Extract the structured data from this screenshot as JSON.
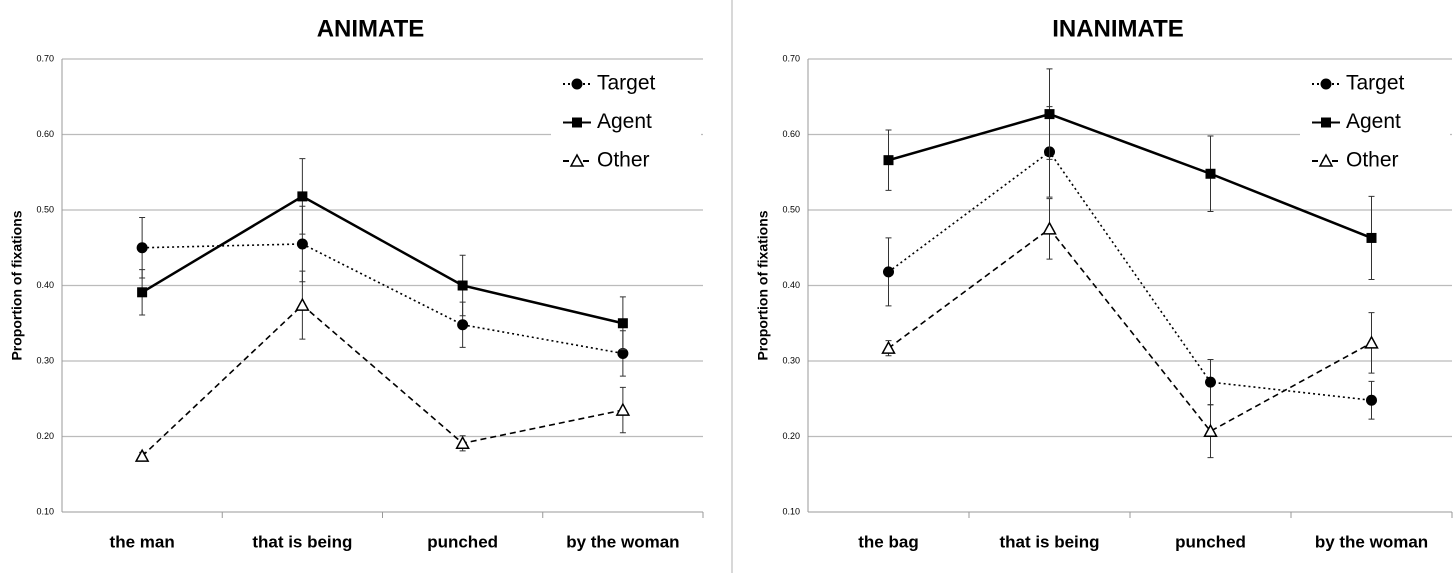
{
  "chart_data": [
    {
      "type": "line",
      "title": "ANIMATE",
      "y_label": "Proportion of fixations",
      "categories": [
        "the man",
        "that is being",
        "punched",
        "by the woman"
      ],
      "ylim": [
        0.1,
        0.7
      ],
      "yticks": [
        {
          "value": 0.1,
          "label": "0.10"
        },
        {
          "value": 0.2,
          "label": "0.20"
        },
        {
          "value": 0.3,
          "label": "0.30"
        },
        {
          "value": 0.4,
          "label": "0.40"
        },
        {
          "value": 0.5,
          "label": "0.50"
        },
        {
          "value": 0.6,
          "label": "0.60"
        },
        {
          "value": 0.7,
          "label": "0.70"
        }
      ],
      "grid": true,
      "legend": "top-right",
      "series": [
        {
          "name": "Target",
          "color": "#000000",
          "dash": "dotted",
          "marker": "circle",
          "values": [
            0.45,
            0.455,
            0.348,
            0.31
          ],
          "errors": [
            0.04,
            0.05,
            0.03,
            0.03
          ]
        },
        {
          "name": "Agent",
          "color": "#000000",
          "dash": "solid",
          "marker": "square",
          "values": [
            0.391,
            0.518,
            0.4,
            0.35
          ],
          "errors": [
            0.03,
            0.05,
            0.04,
            0.035
          ]
        },
        {
          "name": "Other",
          "color": "#000000",
          "dash": "dashed",
          "marker": "triangle",
          "values": [
            0.174,
            0.374,
            0.191,
            0.235
          ],
          "errors": [
            0.005,
            0.045,
            0.01,
            0.03
          ]
        }
      ]
    },
    {
      "type": "line",
      "title": "INANIMATE",
      "y_label": "Proportion of fixations",
      "categories": [
        "the bag",
        "that is being",
        "punched",
        "by the woman"
      ],
      "ylim": [
        0.1,
        0.7
      ],
      "yticks": [
        {
          "value": 0.1,
          "label": "0.10"
        },
        {
          "value": 0.2,
          "label": "0.20"
        },
        {
          "value": 0.3,
          "label": "0.30"
        },
        {
          "value": 0.4,
          "label": "0.40"
        },
        {
          "value": 0.5,
          "label": "0.50"
        },
        {
          "value": 0.6,
          "label": "0.60"
        },
        {
          "value": 0.7,
          "label": "0.70"
        }
      ],
      "grid": true,
      "legend": "top-right",
      "series": [
        {
          "name": "Target",
          "color": "#000000",
          "dash": "dotted",
          "marker": "circle",
          "values": [
            0.418,
            0.577,
            0.272,
            0.248
          ],
          "errors": [
            0.045,
            0.06,
            0.03,
            0.025
          ]
        },
        {
          "name": "Agent",
          "color": "#000000",
          "dash": "solid",
          "marker": "square",
          "values": [
            0.566,
            0.627,
            0.548,
            0.463
          ],
          "errors": [
            0.04,
            0.06,
            0.05,
            0.055
          ]
        },
        {
          "name": "Other",
          "color": "#000000",
          "dash": "dashed",
          "marker": "triangle",
          "values": [
            0.317,
            0.475,
            0.207,
            0.324
          ],
          "errors": [
            0.01,
            0.04,
            0.035,
            0.04
          ]
        }
      ]
    }
  ]
}
